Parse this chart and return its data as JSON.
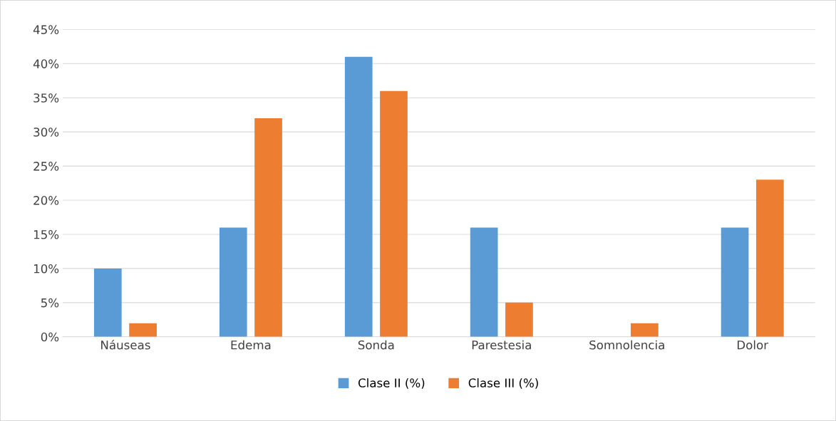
{
  "chart_data": {
    "type": "bar",
    "categories": [
      "Náuseas",
      "Edema",
      "Sonda",
      "Parestesia",
      "Somnolencia",
      "Dolor"
    ],
    "series": [
      {
        "name": "Clase II (%)",
        "color": "#5b9bd5",
        "values": [
          10,
          16,
          41,
          16,
          0,
          16
        ]
      },
      {
        "name": "Clase III (%)",
        "color": "#ed7d31",
        "values": [
          2,
          32,
          36,
          5,
          2,
          23
        ]
      }
    ],
    "ylim": [
      0,
      45
    ],
    "yticks": [
      {
        "value": 0,
        "label": "0%"
      },
      {
        "value": 5,
        "label": "5%"
      },
      {
        "value": 10,
        "label": "10%"
      },
      {
        "value": 15,
        "label": "15%"
      },
      {
        "value": 20,
        "label": "20%"
      },
      {
        "value": 25,
        "label": "25%"
      },
      {
        "value": 30,
        "label": "30%"
      },
      {
        "value": 35,
        "label": "35%"
      },
      {
        "value": 40,
        "label": "40%"
      },
      {
        "value": 45,
        "label": "45%"
      }
    ],
    "grid": "y",
    "legend": "bottom"
  }
}
